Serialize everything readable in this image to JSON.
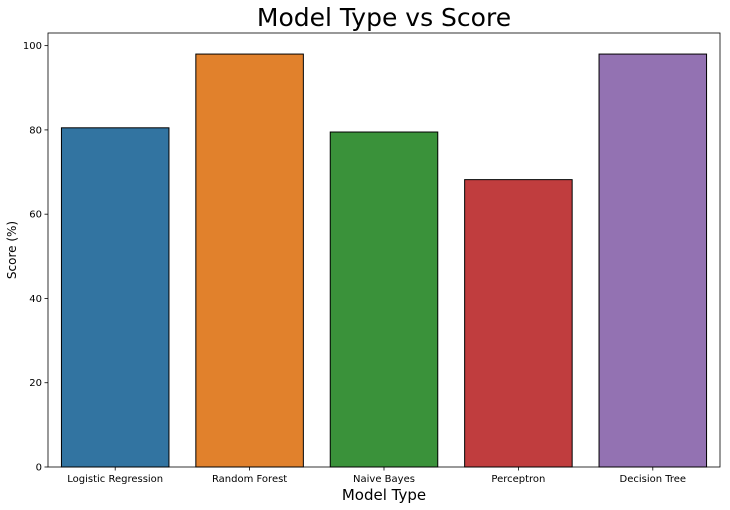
{
  "chart_data": {
    "type": "bar",
    "title": "Model Type vs Score",
    "xlabel": "Model Type",
    "ylabel": "Score (%)",
    "categories": [
      "Logistic Regression",
      "Random Forest",
      "Naive Bayes",
      "Perceptron",
      "Decision Tree"
    ],
    "values": [
      80.5,
      98.0,
      79.5,
      68.2,
      98.0
    ],
    "colors": [
      "#3274a1",
      "#e1812c",
      "#3a923a",
      "#c03d3e",
      "#9372b2"
    ],
    "ylim": [
      0,
      103
    ],
    "yticks": [
      0,
      20,
      40,
      60,
      80,
      100
    ],
    "grid": false,
    "legend": "none"
  }
}
